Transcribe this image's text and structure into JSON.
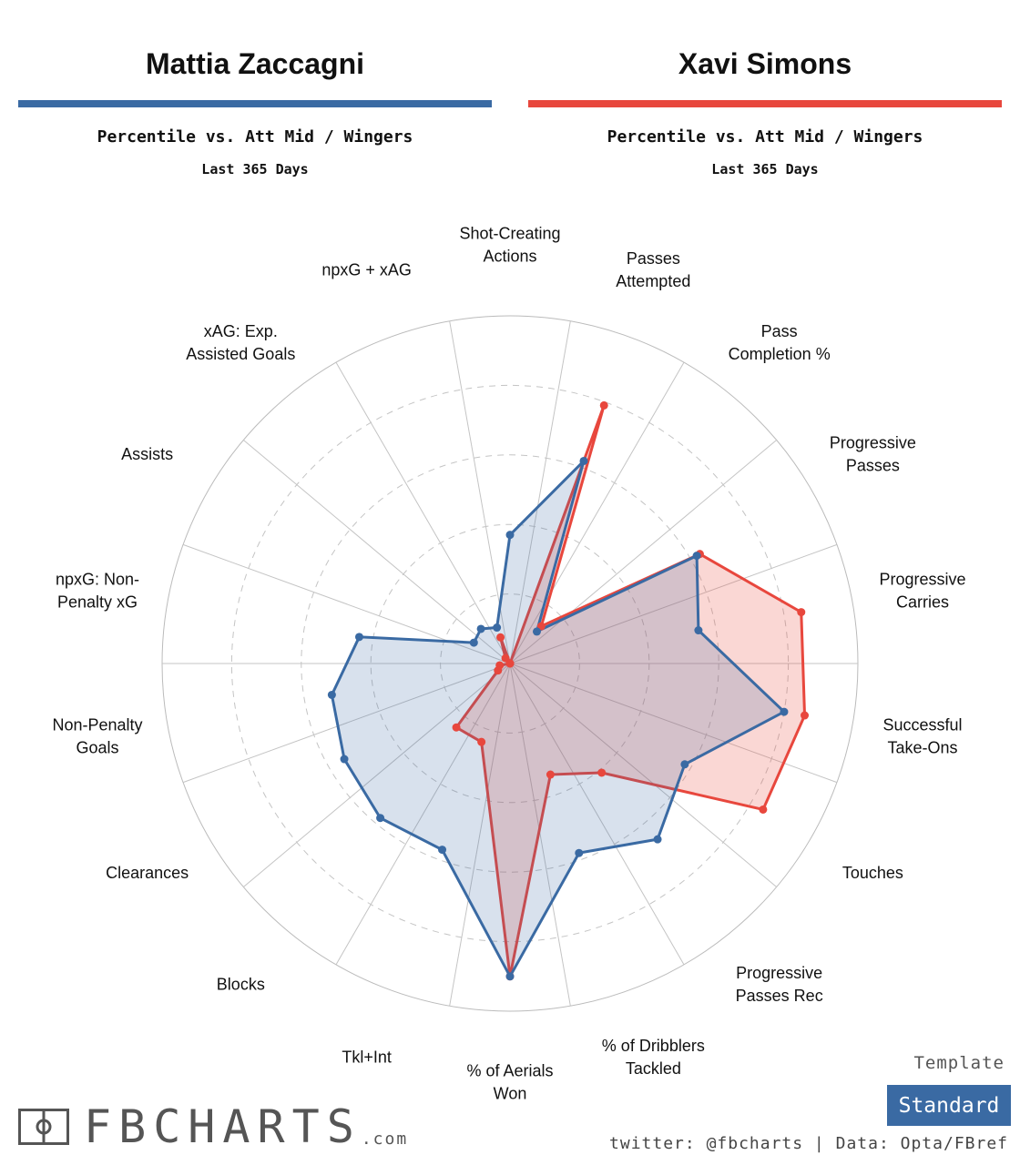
{
  "colors": {
    "player1": "#3a6aa3",
    "player2": "#e8473d",
    "badge": "#3a6aa3"
  },
  "player1": {
    "name": "Mattia Zaccagni",
    "subtitle": "Percentile vs. Att Mid / Wingers",
    "period": "Last 365 Days"
  },
  "player2": {
    "name": "Xavi Simons",
    "subtitle": "Percentile vs. Att Mid / Wingers",
    "period": "Last 365 Days"
  },
  "chart_data": {
    "type": "radar",
    "range": [
      0,
      100
    ],
    "gridlines": [
      20,
      40,
      60,
      80,
      100
    ],
    "categories": [
      [
        "Passes",
        "Attempted"
      ],
      [
        "Pass",
        "Completion %"
      ],
      [
        "Progressive",
        "Passes"
      ],
      [
        "Progressive",
        "Carries"
      ],
      [
        "Successful",
        "Take-Ons"
      ],
      [
        "Touches"
      ],
      [
        "Progressive",
        "Passes Rec"
      ],
      [
        "% of Dribblers",
        "Tackled"
      ],
      [
        "% of Aerials",
        "Won"
      ],
      [
        "Tkl+Int"
      ],
      [
        "Blocks"
      ],
      [
        "Clearances"
      ],
      [
        "Non-Penalty",
        "Goals"
      ],
      [
        "npxG: Non-",
        "Penalty xG"
      ],
      [
        "Assists"
      ],
      [
        "xAG: Exp.",
        "Assisted Goals"
      ],
      [
        "npxG + xAG"
      ],
      [
        "Shot-Creating",
        "Actions"
      ]
    ],
    "series": [
      {
        "name": "Mattia Zaccagni",
        "values": [
          62,
          12,
          62,
          55,
          80,
          58,
          66,
          58,
          90,
          57,
          58,
          55,
          52,
          44,
          12,
          13,
          11,
          37
        ]
      },
      {
        "name": "Xavi Simons",
        "values": [
          79,
          14,
          63,
          85,
          86,
          84,
          41,
          34,
          90,
          24,
          24,
          4,
          3,
          0,
          0,
          2,
          8,
          0
        ]
      }
    ]
  },
  "branding": {
    "template_label": "Template",
    "template_value": "Standard",
    "logo_text": "FBCHARTS",
    "logo_suffix": ".com",
    "credits": "twitter: @fbcharts | Data: Opta/FBref"
  }
}
